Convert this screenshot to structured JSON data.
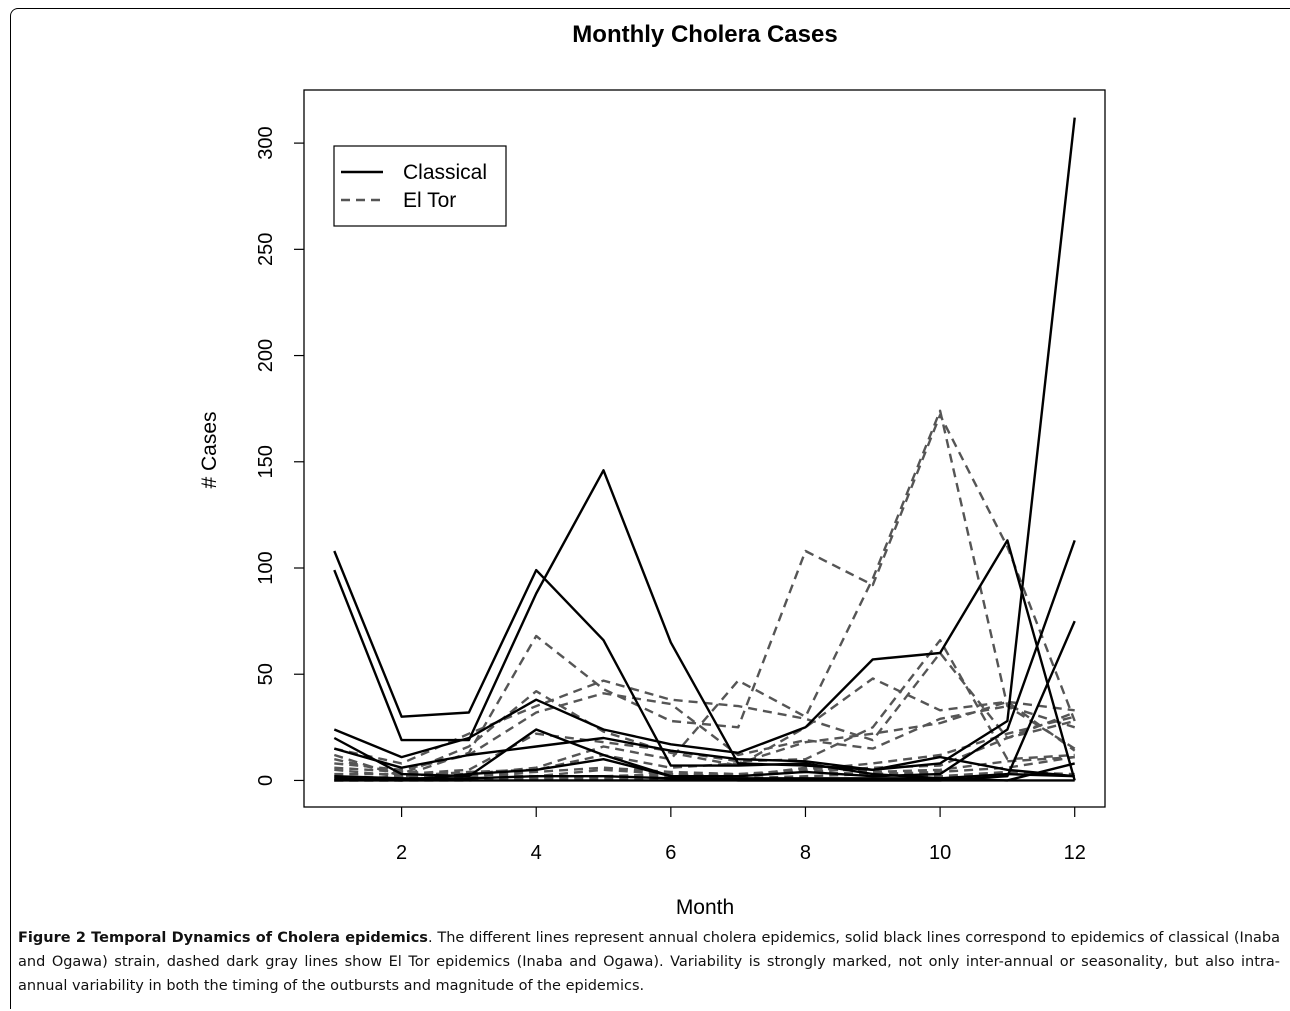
{
  "chart_data": {
    "type": "line",
    "title": "Monthly Cholera Cases",
    "xlabel": "Month",
    "ylabel": "# Cases",
    "xlim": [
      0.55,
      12.45
    ],
    "ylim": [
      -12.5,
      325
    ],
    "xticks": [
      2,
      4,
      6,
      8,
      10,
      12
    ],
    "yticks": [
      0,
      50,
      100,
      150,
      200,
      250,
      300
    ],
    "x": [
      1,
      2,
      3,
      4,
      5,
      6,
      7,
      8,
      9,
      10,
      11,
      12
    ],
    "grid": false,
    "legend": {
      "position": "top-left",
      "entries": [
        {
          "label": "Classical",
          "style": "solid",
          "color": "#000000"
        },
        {
          "label": "El Tor",
          "style": "dashed",
          "color": "#555555"
        }
      ]
    },
    "series": [
      {
        "group": "Classical",
        "values": [
          108,
          30,
          32,
          99,
          66,
          7,
          7,
          8,
          3,
          1,
          0,
          0
        ]
      },
      {
        "group": "Classical",
        "values": [
          99,
          19,
          19,
          88,
          146,
          65,
          8,
          7,
          5,
          8,
          28,
          312
        ]
      },
      {
        "group": "Classical",
        "values": [
          24,
          11,
          20,
          38,
          24,
          17,
          13,
          25,
          57,
          60,
          113,
          0
        ]
      },
      {
        "group": "Classical",
        "values": [
          20,
          3,
          2,
          24,
          12,
          2,
          2,
          4,
          2,
          3,
          24,
          113
        ]
      },
      {
        "group": "Classical",
        "values": [
          15,
          6,
          12,
          16,
          20,
          14,
          10,
          9,
          5,
          11,
          5,
          2
        ]
      },
      {
        "group": "Classical",
        "values": [
          1,
          0,
          3,
          5,
          10,
          2,
          0,
          0,
          0,
          0,
          2,
          75
        ]
      },
      {
        "group": "Classical",
        "values": [
          0,
          0,
          0,
          0,
          0,
          0,
          0,
          0,
          0,
          0,
          0,
          8
        ]
      },
      {
        "group": "Classical",
        "values": [
          2,
          1,
          1,
          2,
          2,
          1,
          1,
          1,
          1,
          1,
          3,
          2
        ]
      },
      {
        "group": "El Tor",
        "values": [
          0,
          2,
          13,
          68,
          43,
          28,
          25,
          108,
          92,
          172,
          110,
          28
        ]
      },
      {
        "group": "El Tor",
        "values": [
          5,
          2,
          3,
          6,
          16,
          10,
          47,
          30,
          95,
          174,
          35,
          15
        ]
      },
      {
        "group": "El Tor",
        "values": [
          10,
          3,
          16,
          42,
          23,
          13,
          7,
          25,
          48,
          33,
          37,
          33
        ]
      },
      {
        "group": "El Tor",
        "values": [
          15,
          8,
          22,
          35,
          47,
          38,
          35,
          29,
          19,
          60,
          20,
          32
        ]
      },
      {
        "group": "El Tor",
        "values": [
          8,
          5,
          12,
          32,
          41,
          36,
          12,
          19,
          15,
          29,
          35,
          25
        ]
      },
      {
        "group": "El Tor",
        "values": [
          3,
          3,
          5,
          22,
          18,
          14,
          9,
          10,
          25,
          66,
          10,
          12
        ]
      },
      {
        "group": "El Tor",
        "values": [
          12,
          2,
          4,
          5,
          12,
          6,
          8,
          18,
          22,
          27,
          37,
          14
        ]
      },
      {
        "group": "El Tor",
        "values": [
          2,
          1,
          2,
          4,
          6,
          4,
          3,
          5,
          8,
          12,
          22,
          30
        ]
      },
      {
        "group": "El Tor",
        "values": [
          6,
          4,
          3,
          2,
          5,
          3,
          2,
          6,
          4,
          5,
          9,
          11
        ]
      },
      {
        "group": "El Tor",
        "values": [
          0,
          0,
          1,
          1,
          2,
          3,
          2,
          4,
          3,
          2,
          4,
          3
        ]
      },
      {
        "group": "El Tor",
        "values": [
          1,
          1,
          1,
          2,
          2,
          2,
          3,
          4,
          6,
          7,
          20,
          28
        ]
      },
      {
        "group": "El Tor",
        "values": [
          0,
          0,
          0,
          1,
          1,
          1,
          1,
          2,
          3,
          4,
          6,
          11
        ]
      }
    ]
  },
  "caption": {
    "figure_label": "Figure 2 Temporal Dynamics of Cholera epidemics",
    "text": ". The different lines represent annual cholera epidemics, solid black lines correspond to epidemics of classical (Inaba and Ogawa) strain, dashed dark gray lines show El Tor epidemics (Inaba and Ogawa). Variability is strongly marked, not only inter-annual or seasonality, but also intra-annual variability in both the timing of the outbursts and magnitude of the epidemics."
  }
}
